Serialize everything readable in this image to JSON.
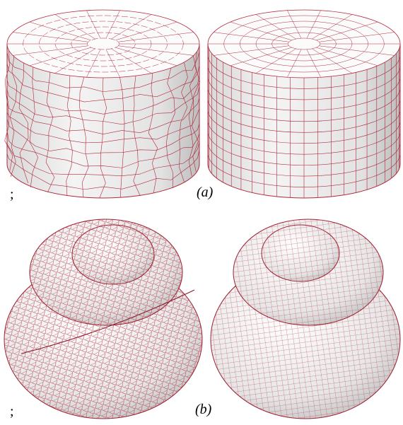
{
  "panels": [
    {
      "separator": ";",
      "label": "(a)"
    },
    {
      "separator": ";",
      "label": "(b)"
    }
  ]
}
